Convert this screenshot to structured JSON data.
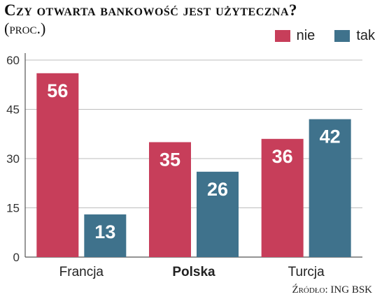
{
  "chart_data": {
    "type": "bar",
    "title": "Czy otwarta bankowość jest użyteczna?",
    "subtitle": "(proc.)",
    "categories": [
      "Francja",
      "Polska",
      "Turcja"
    ],
    "highlight_category": "Polska",
    "series": [
      {
        "name": "nie",
        "color": "#c73e5a",
        "values": [
          56,
          35,
          36
        ]
      },
      {
        "name": "tak",
        "color": "#3f728c",
        "values": [
          13,
          26,
          42
        ]
      }
    ],
    "y_ticks": [
      "0",
      "15",
      "30",
      "45",
      "60"
    ],
    "ylim": [
      0,
      60
    ],
    "grid": true,
    "legend_position": "top-right",
    "source": "Źródło: ING BSK"
  }
}
